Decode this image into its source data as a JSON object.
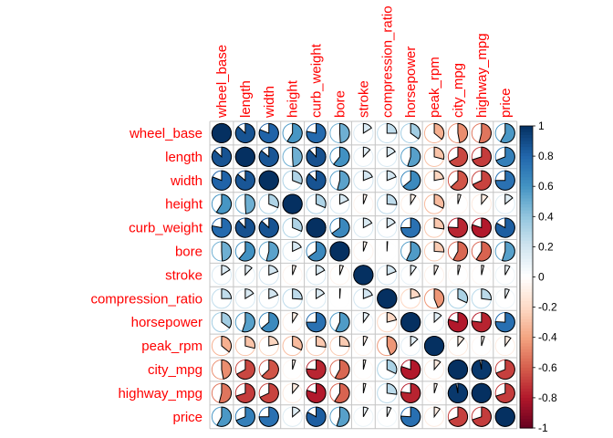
{
  "chart_data": {
    "type": "heatmap",
    "method": "pie",
    "variables": [
      "wheel_base",
      "length",
      "width",
      "height",
      "curb_weight",
      "bore",
      "stroke",
      "compression_ratio",
      "horsepower",
      "peak_rpm",
      "city_mpg",
      "highway_mpg",
      "price"
    ],
    "matrix": [
      [
        1.0,
        0.87,
        0.81,
        0.59,
        0.78,
        0.49,
        0.16,
        0.25,
        0.35,
        -0.36,
        -0.47,
        -0.54,
        0.58
      ],
      [
        0.87,
        1.0,
        0.86,
        0.49,
        0.88,
        0.61,
        0.12,
        0.16,
        0.55,
        -0.29,
        -0.67,
        -0.7,
        0.69
      ],
      [
        0.81,
        0.86,
        1.0,
        0.31,
        0.87,
        0.54,
        0.19,
        0.19,
        0.64,
        -0.22,
        -0.63,
        -0.68,
        0.75
      ],
      [
        0.59,
        0.49,
        0.31,
        1.0,
        0.31,
        0.18,
        -0.06,
        0.26,
        -0.09,
        -0.32,
        -0.05,
        -0.11,
        0.14
      ],
      [
        0.78,
        0.88,
        0.87,
        0.31,
        1.0,
        0.65,
        0.17,
        0.16,
        0.75,
        -0.27,
        -0.76,
        -0.8,
        0.83
      ],
      [
        0.49,
        0.61,
        0.54,
        0.18,
        0.65,
        1.0,
        -0.06,
        0.01,
        0.57,
        -0.26,
        -0.58,
        -0.59,
        0.55
      ],
      [
        0.16,
        0.12,
        0.19,
        -0.06,
        0.17,
        -0.06,
        1.0,
        0.19,
        0.1,
        -0.07,
        -0.04,
        -0.04,
        0.08
      ],
      [
        0.25,
        0.16,
        0.19,
        0.26,
        0.16,
        0.01,
        0.19,
        1.0,
        -0.21,
        -0.44,
        0.32,
        0.27,
        0.07
      ],
      [
        0.35,
        0.55,
        0.64,
        -0.09,
        0.75,
        0.57,
        0.1,
        -0.21,
        1.0,
        0.13,
        -0.8,
        -0.77,
        0.76
      ],
      [
        -0.36,
        -0.29,
        -0.22,
        -0.32,
        -0.27,
        -0.26,
        -0.07,
        -0.44,
        0.13,
        1.0,
        -0.11,
        -0.05,
        -0.1
      ],
      [
        -0.47,
        -0.67,
        -0.63,
        -0.05,
        -0.76,
        -0.58,
        -0.04,
        0.32,
        -0.8,
        -0.11,
        1.0,
        0.97,
        -0.69
      ],
      [
        -0.54,
        -0.7,
        -0.68,
        -0.11,
        -0.8,
        -0.59,
        -0.04,
        0.27,
        -0.77,
        -0.05,
        0.97,
        1.0,
        -0.7
      ],
      [
        0.58,
        0.69,
        0.75,
        0.14,
        0.83,
        0.55,
        0.08,
        0.07,
        0.76,
        -0.1,
        -0.69,
        -0.7,
        1.0
      ]
    ],
    "colorbar": {
      "range": [
        -1,
        1
      ],
      "ticks": [
        "1",
        "0.8",
        "0.6",
        "0.4",
        "0.2",
        "0",
        "-0.2",
        "-0.4",
        "-0.6",
        "-0.8",
        "-1"
      ]
    },
    "label_color": "#ff0000",
    "grid_color": "#c4c4c4",
    "palette": [
      "#67001f",
      "#b2182b",
      "#d6604d",
      "#f4a582",
      "#fddbc7",
      "#ffffff",
      "#d1e5f0",
      "#92c5de",
      "#4393c3",
      "#2166ac",
      "#053061"
    ]
  }
}
